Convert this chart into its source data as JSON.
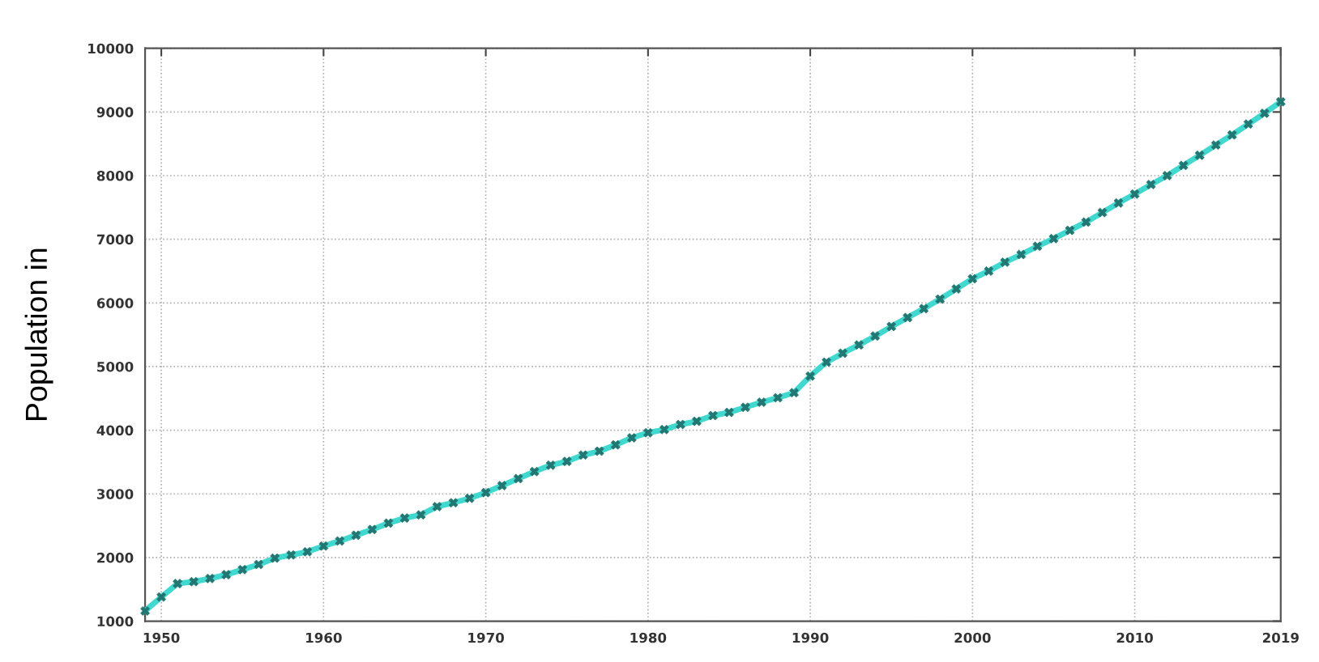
{
  "chart_data": {
    "type": "line",
    "ylabel": "Population in",
    "x": [
      1949,
      1950,
      1951,
      1952,
      1953,
      1954,
      1955,
      1956,
      1957,
      1958,
      1959,
      1960,
      1961,
      1962,
      1963,
      1964,
      1965,
      1966,
      1967,
      1968,
      1969,
      1970,
      1971,
      1972,
      1973,
      1974,
      1975,
      1976,
      1977,
      1978,
      1979,
      1980,
      1981,
      1982,
      1983,
      1984,
      1985,
      1986,
      1987,
      1988,
      1989,
      1990,
      1991,
      1992,
      1993,
      1994,
      1995,
      1996,
      1997,
      1998,
      1999,
      2000,
      2001,
      2002,
      2003,
      2004,
      2005,
      2006,
      2007,
      2008,
      2009,
      2010,
      2011,
      2012,
      2013,
      2014,
      2015,
      2016,
      2017,
      2018,
      2019
    ],
    "series": [
      {
        "color": "#40d8cf",
        "values": [
          1160,
          1380,
          1590,
          1620,
          1670,
          1730,
          1810,
          1890,
          1990,
          2040,
          2090,
          2180,
          2260,
          2350,
          2440,
          2540,
          2620,
          2670,
          2800,
          2860,
          2930,
          3020,
          3130,
          3240,
          3350,
          3450,
          3510,
          3610,
          3670,
          3770,
          3880,
          3960,
          4010,
          4090,
          4140,
          4230,
          4280,
          4360,
          4440,
          4510,
          4590,
          4850,
          5070,
          5210,
          5340,
          5480,
          5630,
          5770,
          5910,
          6060,
          6220,
          6380,
          6500,
          6640,
          6760,
          6890,
          7010,
          7140,
          7270,
          7420,
          7570,
          7710,
          7860,
          8000,
          8160,
          8320,
          8480,
          8640,
          8810,
          8980,
          9160
        ]
      }
    ],
    "xlim": [
      1949,
      2019
    ],
    "ylim": [
      1000,
      10000
    ],
    "xticks": [
      1950,
      1960,
      1970,
      1980,
      1990,
      2000,
      2010,
      2019
    ],
    "yticks": [
      1000,
      2000,
      3000,
      4000,
      5000,
      6000,
      7000,
      8000,
      9000,
      10000
    ],
    "grid": true,
    "marker": "cross",
    "line_style": "solid"
  }
}
